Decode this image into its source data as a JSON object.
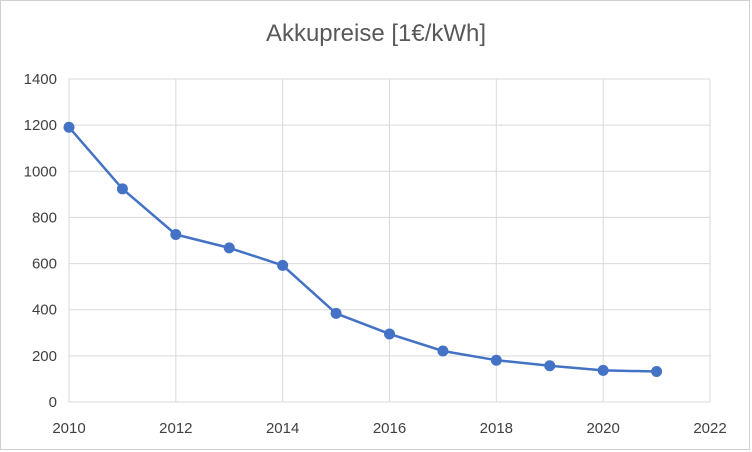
{
  "chart_data": {
    "type": "line",
    "title": "Akkupreise [1€/kWh]",
    "xlabel": "",
    "ylabel": "",
    "xlim": [
      2010,
      2022
    ],
    "ylim": [
      0,
      1400
    ],
    "x_ticks": [
      2010,
      2012,
      2014,
      2016,
      2018,
      2020,
      2022
    ],
    "y_ticks": [
      0,
      200,
      400,
      600,
      800,
      1000,
      1200,
      1400
    ],
    "grid": true,
    "legend": "none",
    "series": [
      {
        "color": "#4472c4",
        "x": [
          2010,
          2011,
          2012,
          2013,
          2014,
          2015,
          2016,
          2017,
          2018,
          2019,
          2020,
          2021
        ],
        "y": [
          1191,
          924,
          726,
          668,
          592,
          384,
          295,
          221,
          181,
          157,
          137,
          132
        ]
      }
    ]
  }
}
